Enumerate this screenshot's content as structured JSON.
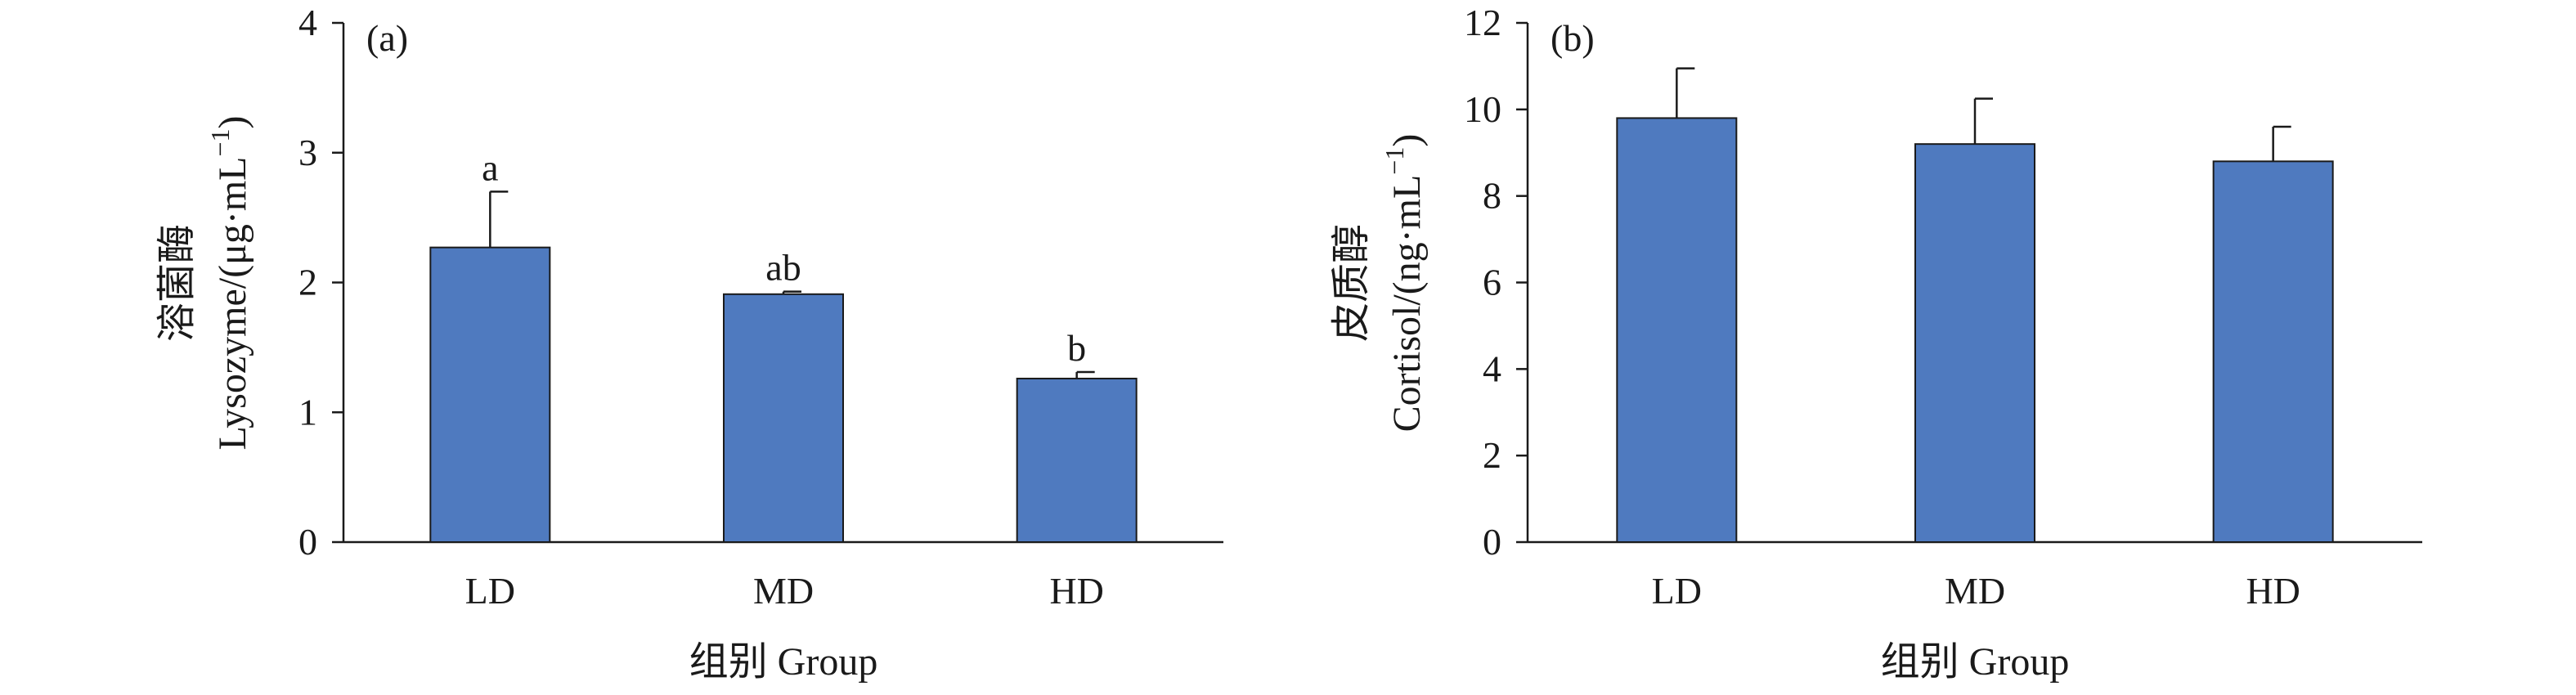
{
  "chart_data": [
    {
      "type": "bar",
      "panel_label": "(a)",
      "categories": [
        "LD",
        "MD",
        "HD"
      ],
      "values": [
        2.27,
        1.91,
        1.26
      ],
      "errors": [
        0.43,
        0.02,
        0.05
      ],
      "significance": [
        "a",
        "ab",
        "b"
      ],
      "ylim": [
        0,
        4
      ],
      "yticks": [
        "0",
        "1",
        "2",
        "3",
        "4"
      ],
      "ylabel_cn": "溶菌酶",
      "ylabel_en": "Lysozyme/(μg·mL",
      "ylabel_sup": "−1",
      "ylabel_close": ")",
      "xlabel": "组别 Group",
      "color": "#4f7abf",
      "grid": false
    },
    {
      "type": "bar",
      "panel_label": "(b)",
      "categories": [
        "LD",
        "MD",
        "HD"
      ],
      "values": [
        9.8,
        9.2,
        8.8
      ],
      "errors": [
        1.15,
        1.05,
        0.8
      ],
      "significance": [
        "",
        "",
        ""
      ],
      "ylim": [
        0,
        12
      ],
      "yticks": [
        "0",
        "2",
        "4",
        "6",
        "8",
        "10",
        "12"
      ],
      "ylabel_cn": "皮质醇",
      "ylabel_en": "Cortisol/(ng·mL",
      "ylabel_sup": "−1",
      "ylabel_close": ")",
      "xlabel": "组别 Group",
      "color": "#4f7abf",
      "grid": false
    }
  ]
}
